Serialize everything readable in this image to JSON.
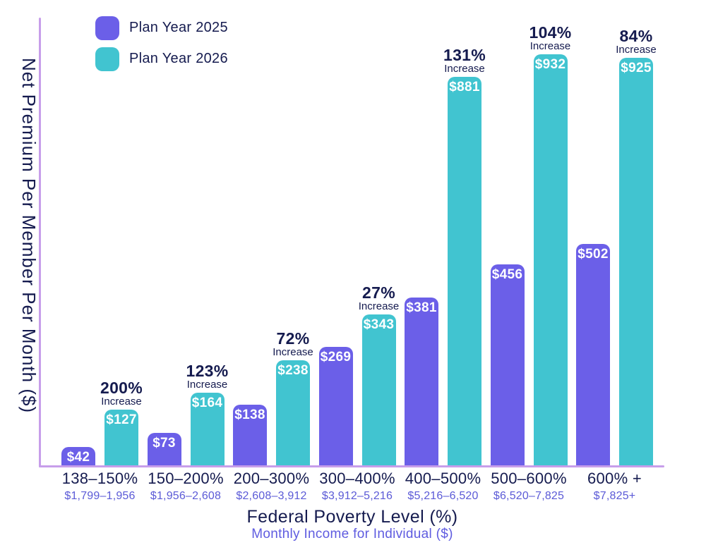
{
  "chart_data": {
    "type": "bar",
    "title": "",
    "ylabel": "Net Premium Per Member Per Month ($)",
    "xlabel": "Federal Poverty Level (%)",
    "xlabel_sub": "Monthly Income for Individual ($)",
    "categories": [
      "138–150%",
      "150–200%",
      "200–300%",
      "300–400%",
      "400–500%",
      "500–600%",
      "600% +"
    ],
    "income_labels": [
      "$1,799–1,956",
      "$1,956–2,608",
      "$2,608–3,912",
      "$3,912–5,216",
      "$5,216–6,520",
      "$6,520–7,825",
      "$7,825+"
    ],
    "series": [
      {
        "name": "Plan Year 2025",
        "color": "#6B5FE8",
        "values": [
          42,
          73,
          138,
          269,
          381,
          456,
          502
        ]
      },
      {
        "name": "Plan Year 2026",
        "color": "#41C4D0",
        "values": [
          127,
          164,
          238,
          343,
          881,
          932,
          925
        ]
      }
    ],
    "increase_labels": [
      "200%",
      "123%",
      "72%",
      "27%",
      "131%",
      "104%",
      "84%"
    ],
    "increase_word": "Increase",
    "value_prefix": "$",
    "ylim": [
      0,
      960
    ],
    "grid": false,
    "legend_position": "top-left",
    "colors": {
      "axis_line": "#C79EEA",
      "text_navy": "#151B4F",
      "text_purple": "#5B5AD7",
      "bar_value_text": "#ffffff"
    }
  }
}
